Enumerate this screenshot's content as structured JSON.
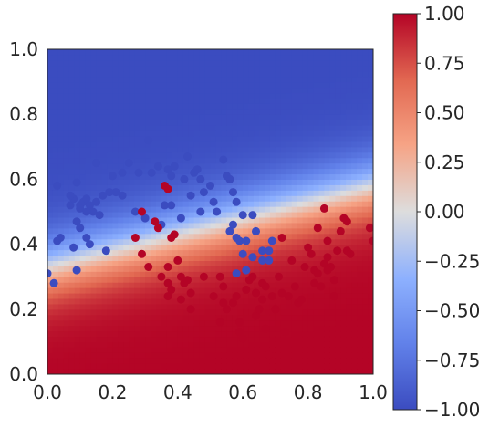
{
  "chart_data": {
    "type": "scatter",
    "title": "",
    "xlabel": "",
    "ylabel": "",
    "xlim": [
      0,
      1
    ],
    "ylim": [
      0,
      1
    ],
    "x_ticks": [
      "0.0",
      "0.2",
      "0.4",
      "0.6",
      "0.8",
      "1.0"
    ],
    "y_ticks": [
      "0.0",
      "0.2",
      "0.4",
      "0.6",
      "0.8",
      "1.0"
    ],
    "grid": false,
    "background": "decision surface, coolwarm colormap",
    "colorbar": {
      "range": [
        -1,
        1
      ],
      "ticks": [
        "1.00",
        "0.75",
        "0.50",
        "0.25",
        "0.00",
        "−0.25",
        "−0.50",
        "−0.75",
        "−1.00"
      ],
      "colors": [
        "#3b4cc0",
        "#7396f5",
        "#b0cbfc",
        "#dcdddd",
        "#f6bfa6",
        "#f08b6e",
        "#b40426"
      ]
    },
    "series": [
      {
        "class": "blue",
        "color": "#3b4cc0",
        "points": [
          [
            0.31,
            0.72
          ],
          [
            0.03,
            0.58
          ],
          [
            0.09,
            0.59
          ],
          [
            0.15,
            0.65
          ],
          [
            0.19,
            0.56
          ],
          [
            0.23,
            0.55
          ],
          [
            0.23,
            0.62
          ],
          [
            0.25,
            0.65
          ],
          [
            0.28,
            0.62
          ],
          [
            0.32,
            0.62
          ],
          [
            0.34,
            0.64
          ],
          [
            0.37,
            0.63
          ],
          [
            0.38,
            0.61
          ],
          [
            0.39,
            0.64
          ],
          [
            0.42,
            0.6
          ],
          [
            0.43,
            0.67
          ],
          [
            0.45,
            0.62
          ],
          [
            0.46,
            0.63
          ],
          [
            0.47,
            0.6
          ],
          [
            0.48,
            0.56
          ],
          [
            0.5,
            0.58
          ],
          [
            0.51,
            0.53
          ],
          [
            0.52,
            0.5
          ],
          [
            0.54,
            0.66
          ],
          [
            0.55,
            0.61
          ],
          [
            0.56,
            0.6
          ],
          [
            0.57,
            0.56
          ],
          [
            0.58,
            0.53
          ],
          [
            0.6,
            0.49
          ],
          [
            0.57,
            0.46
          ],
          [
            0.63,
            0.49
          ],
          [
            0.56,
            0.44
          ],
          [
            0.58,
            0.42
          ],
          [
            0.59,
            0.41
          ],
          [
            0.61,
            0.41
          ],
          [
            0.64,
            0.44
          ],
          [
            0.66,
            0.38
          ],
          [
            0.68,
            0.38
          ],
          [
            0.69,
            0.41
          ],
          [
            0.66,
            0.35
          ],
          [
            0.68,
            0.35
          ],
          [
            0.61,
            0.32
          ],
          [
            0.58,
            0.31
          ],
          [
            0.6,
            0.37
          ],
          [
            0.63,
            0.36
          ],
          [
            0.03,
            0.41
          ],
          [
            0.04,
            0.42
          ],
          [
            0.08,
            0.39
          ],
          [
            0.09,
            0.47
          ],
          [
            0.1,
            0.45
          ],
          [
            0.12,
            0.42
          ],
          [
            0.13,
            0.4
          ],
          [
            0.18,
            0.38
          ],
          [
            0.2,
            0.61
          ],
          [
            0.07,
            0.52
          ],
          [
            0.08,
            0.54
          ],
          [
            0.1,
            0.52
          ],
          [
            0.11,
            0.53
          ],
          [
            0.12,
            0.54
          ],
          [
            0.13,
            0.52
          ],
          [
            0.14,
            0.5
          ],
          [
            0.15,
            0.53
          ],
          [
            0.16,
            0.49
          ],
          [
            0.07,
            0.55
          ],
          [
            0.1,
            0.51
          ],
          [
            0.12,
            0.5
          ],
          [
            0.17,
            0.55
          ],
          [
            0.21,
            0.56
          ],
          [
            0.27,
            0.5
          ],
          [
            0.3,
            0.48
          ],
          [
            0.35,
            0.46
          ],
          [
            0.36,
            0.52
          ],
          [
            0.38,
            0.52
          ],
          [
            0.41,
            0.48
          ],
          [
            0.44,
            0.55
          ],
          [
            0.47,
            0.5
          ],
          [
            0.0,
            0.31
          ],
          [
            0.02,
            0.28
          ],
          [
            0.09,
            0.32
          ]
        ]
      },
      {
        "class": "red",
        "color": "#b40426",
        "points": [
          [
            0.29,
            0.5
          ],
          [
            0.27,
            0.42
          ],
          [
            0.29,
            0.37
          ],
          [
            0.31,
            0.33
          ],
          [
            0.33,
            0.47
          ],
          [
            0.34,
            0.45
          ],
          [
            0.35,
            0.3
          ],
          [
            0.37,
            0.33
          ],
          [
            0.37,
            0.28
          ],
          [
            0.38,
            0.42
          ],
          [
            0.39,
            0.43
          ],
          [
            0.4,
            0.35
          ],
          [
            0.41,
            0.3
          ],
          [
            0.42,
            0.28
          ],
          [
            0.43,
            0.29
          ],
          [
            0.44,
            0.25
          ],
          [
            0.44,
            0.2
          ],
          [
            0.37,
            0.24
          ],
          [
            0.38,
            0.26
          ],
          [
            0.41,
            0.23
          ],
          [
            0.36,
            0.58
          ],
          [
            0.37,
            0.57
          ],
          [
            0.48,
            0.3
          ],
          [
            0.51,
            0.24
          ],
          [
            0.53,
            0.3
          ],
          [
            0.54,
            0.27
          ],
          [
            0.54,
            0.22
          ],
          [
            0.53,
            0.16
          ],
          [
            0.55,
            0.2
          ],
          [
            0.57,
            0.22
          ],
          [
            0.58,
            0.24
          ],
          [
            0.59,
            0.16
          ],
          [
            0.59,
            0.13
          ],
          [
            0.6,
            0.11
          ],
          [
            0.61,
            0.26
          ],
          [
            0.62,
            0.29
          ],
          [
            0.63,
            0.3
          ],
          [
            0.64,
            0.25
          ],
          [
            0.64,
            0.18
          ],
          [
            0.65,
            0.2
          ],
          [
            0.66,
            0.28
          ],
          [
            0.66,
            0.23
          ],
          [
            0.67,
            0.27
          ],
          [
            0.67,
            0.14
          ],
          [
            0.68,
            0.06
          ],
          [
            0.69,
            0.24
          ],
          [
            0.7,
            0.2
          ],
          [
            0.71,
            0.3
          ],
          [
            0.72,
            0.42
          ],
          [
            0.72,
            0.25
          ],
          [
            0.73,
            0.13
          ],
          [
            0.74,
            0.24
          ],
          [
            0.75,
            0.35
          ],
          [
            0.76,
            0.27
          ],
          [
            0.77,
            0.22
          ],
          [
            0.78,
            0.23
          ],
          [
            0.79,
            0.33
          ],
          [
            0.8,
            0.39
          ],
          [
            0.81,
            0.37
          ],
          [
            0.82,
            0.32
          ],
          [
            0.82,
            0.28
          ],
          [
            0.83,
            0.31
          ],
          [
            0.84,
            0.27
          ],
          [
            0.85,
            0.34
          ],
          [
            0.86,
            0.36
          ],
          [
            0.87,
            0.33
          ],
          [
            0.83,
            0.45
          ],
          [
            0.85,
            0.51
          ],
          [
            0.86,
            0.41
          ],
          [
            0.88,
            0.24
          ],
          [
            0.88,
            0.29
          ],
          [
            0.89,
            0.38
          ],
          [
            0.9,
            0.44
          ],
          [
            0.91,
            0.48
          ],
          [
            0.92,
            0.47
          ],
          [
            0.92,
            0.38
          ],
          [
            0.93,
            0.37
          ],
          [
            0.99,
            0.45
          ],
          [
            1.0,
            0.41
          ],
          [
            0.86,
            0.32
          ]
        ]
      }
    ]
  }
}
